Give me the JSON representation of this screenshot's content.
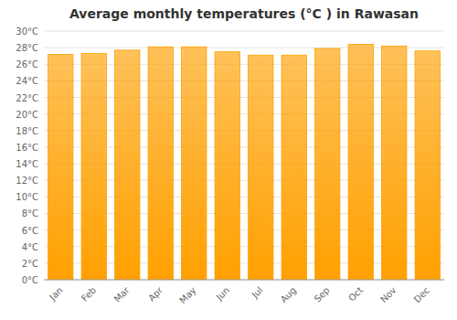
{
  "chart_data": {
    "type": "bar",
    "title": "Average monthly temperatures (°C ) in Rawasan",
    "categories": [
      "Jan",
      "Feb",
      "Mar",
      "Apr",
      "May",
      "Jun",
      "Jul",
      "Aug",
      "Sep",
      "Oct",
      "Nov",
      "Dec"
    ],
    "values": [
      27.2,
      27.3,
      27.7,
      28.1,
      28.1,
      27.5,
      27.1,
      27.1,
      27.9,
      28.4,
      28.2,
      27.6
    ],
    "color": "#FFA000",
    "ylim": [
      0,
      30
    ],
    "yticks": [
      {
        "value": 0,
        "label": "0°C"
      },
      {
        "value": 2,
        "label": "2°C"
      },
      {
        "value": 4,
        "label": "4°C"
      },
      {
        "value": 6,
        "label": "6°C"
      },
      {
        "value": 8,
        "label": "8°C"
      },
      {
        "value": 10,
        "label": "10°C"
      },
      {
        "value": 12,
        "label": "12°C"
      },
      {
        "value": 14,
        "label": "14°C"
      },
      {
        "value": 16,
        "label": "16°C"
      },
      {
        "value": 18,
        "label": "18°C"
      },
      {
        "value": 20,
        "label": "20°C"
      },
      {
        "value": 22,
        "label": "22°C"
      },
      {
        "value": 24,
        "label": "24°C"
      },
      {
        "value": 26,
        "label": "26°C"
      },
      {
        "value": 28,
        "label": "28°C"
      },
      {
        "value": 30,
        "label": "30°C"
      }
    ],
    "grid": true
  }
}
